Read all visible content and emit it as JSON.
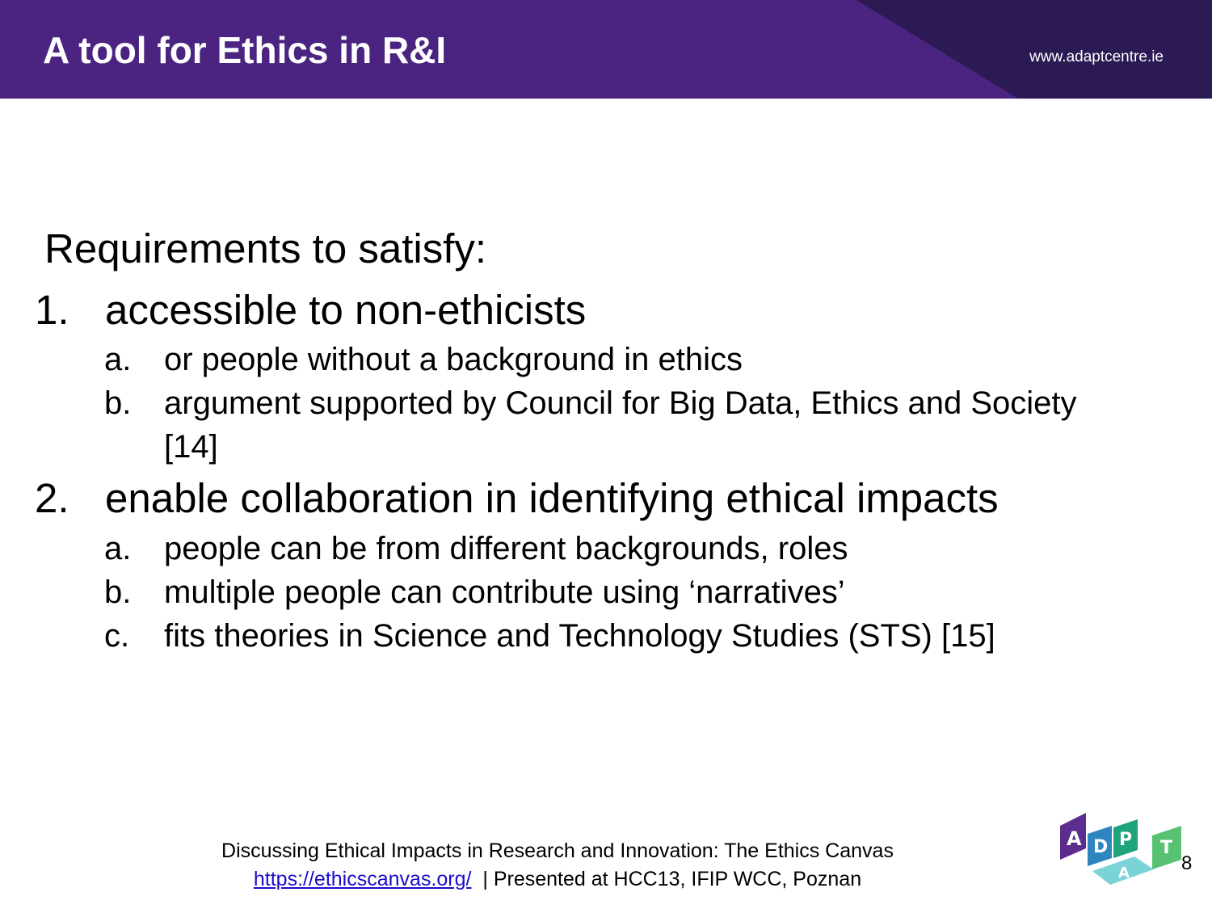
{
  "header": {
    "title": "A tool for Ethics in R&I",
    "site_url": "www.adaptcentre.ie"
  },
  "content": {
    "heading": "Requirements to satisfy:",
    "items": [
      {
        "number": "1.",
        "text": "accessible to non-ethicists",
        "subitems": [
          {
            "letter": "a.",
            "text": "or people without a background in ethics"
          },
          {
            "letter": "b.",
            "text": "argument supported by Council for Big Data, Ethics and Society [14]"
          }
        ]
      },
      {
        "number": "2.",
        "text": "enable collaboration in identifying ethical impacts",
        "subitems": [
          {
            "letter": "a.",
            "text": "people can be from different backgrounds, roles"
          },
          {
            "letter": "b.",
            "text": "multiple people can contribute using ‘narratives’"
          },
          {
            "letter": "c.",
            "text": "fits theories in Science and Technology Studies (STS) [15]"
          }
        ]
      }
    ]
  },
  "footer": {
    "line1": "Discussing Ethical Impacts in Research and Innovation: The Ethics Canvas",
    "link": "https://ethicscanvas.org/",
    "line2_suffix": "  | Presented at HCC13, IFIP WCC, Poznan"
  },
  "page_number": "8",
  "logo": {
    "letters": [
      "A",
      "D",
      "P",
      "A",
      "T"
    ],
    "colors": [
      "#5b2d8e",
      "#2e86c1",
      "#1fa37a",
      "#58c172",
      "#7ad3d6"
    ]
  }
}
